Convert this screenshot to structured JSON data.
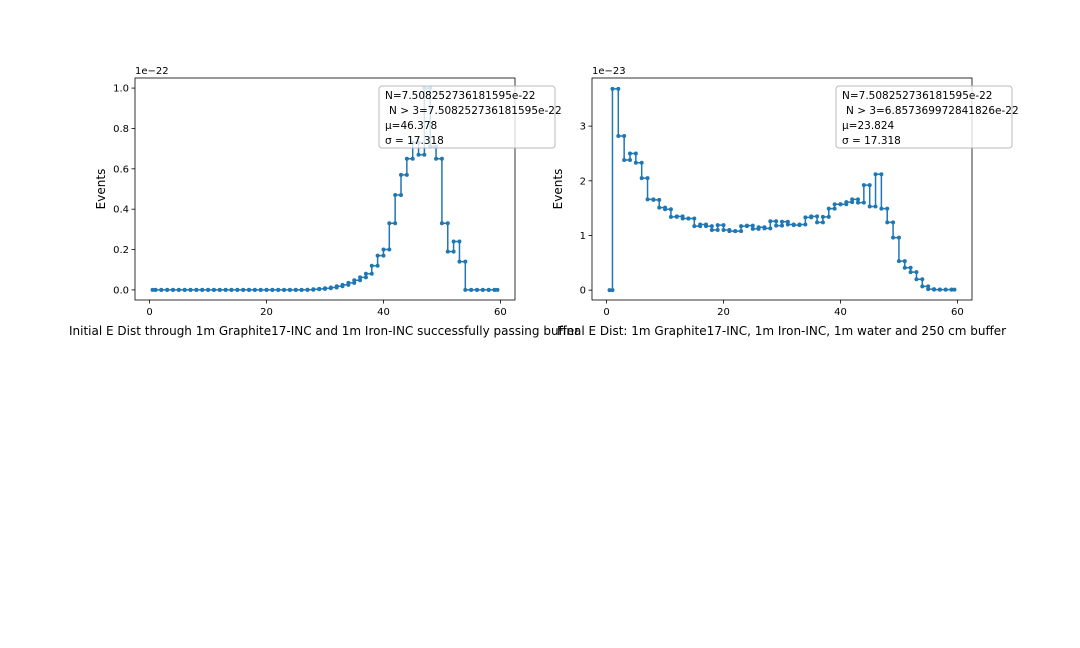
{
  "figure": {
    "background": "#ffffff"
  },
  "chart_data": [
    {
      "type": "line",
      "drawstyle": "steps-mid",
      "marker": "dot",
      "color": "#1f77b4",
      "title": "Initial E Dist through 1m Graphite17-INC and 1m Iron-INC successfully passing buffer",
      "xlabel": "",
      "ylabel": "Events",
      "offset_label": "1e−22",
      "xlim": [
        -2.5,
        62.5
      ],
      "ylim": [
        -0.05,
        1.05
      ],
      "xticks": [
        0,
        20,
        40,
        60
      ],
      "yticks": [
        0.0,
        0.2,
        0.4,
        0.6,
        0.8,
        1.0
      ],
      "ytick_labels": [
        "0.0",
        "0.2",
        "0.4",
        "0.6",
        "0.8",
        "1.0"
      ],
      "grid": false,
      "legend_position": "top-right",
      "legend": [
        "N=7.508252736181595e-22",
        "N > 3=7.508252736181595e-22",
        "μ=46.378",
        "σ = 17.318"
      ],
      "x": [
        0.5,
        1.5,
        2.5,
        3.5,
        4.5,
        5.5,
        6.5,
        7.5,
        8.5,
        9.5,
        10.5,
        11.5,
        12.5,
        13.5,
        14.5,
        15.5,
        16.5,
        17.5,
        18.5,
        19.5,
        20.5,
        21.5,
        22.5,
        23.5,
        24.5,
        25.5,
        26.5,
        27.5,
        28.5,
        29.5,
        30.5,
        31.5,
        32.5,
        33.5,
        34.5,
        35.5,
        36.5,
        37.5,
        38.5,
        39.5,
        40.5,
        41.5,
        42.5,
        43.5,
        44.5,
        45.5,
        46.5,
        47.5,
        48.5,
        49.5,
        50.5,
        51.5,
        52.5,
        53.5,
        54.5,
        55.5,
        56.5,
        57.5,
        58.5,
        59.5
      ],
      "y": [
        0,
        0,
        0,
        0,
        0,
        0,
        0,
        0,
        0,
        0,
        0,
        0,
        0,
        0,
        0,
        0,
        0,
        0,
        0,
        0,
        0,
        0,
        0,
        0,
        0,
        0,
        0,
        0.001,
        0.003,
        0.005,
        0.008,
        0.012,
        0.018,
        0.025,
        0.035,
        0.048,
        0.062,
        0.08,
        0.12,
        0.17,
        0.2,
        0.33,
        0.47,
        0.57,
        0.65,
        0.73,
        0.67,
        1.0,
        0.71,
        0.65,
        0.33,
        0.19,
        0.24,
        0.14,
        0,
        0,
        0,
        0,
        0,
        0
      ]
    },
    {
      "type": "line",
      "drawstyle": "steps-mid",
      "marker": "dot",
      "color": "#1f77b4",
      "title": "Final E Dist: 1m Graphite17-INC, 1m Iron-INC, 1m water and 250 cm buffer",
      "xlabel": "",
      "ylabel": "Events",
      "offset_label": "1e−23",
      "xlim": [
        -2.5,
        62.5
      ],
      "ylim": [
        -0.18,
        3.88
      ],
      "xticks": [
        0,
        20,
        40,
        60
      ],
      "yticks": [
        0,
        1,
        2,
        3
      ],
      "ytick_labels": [
        "0",
        "1",
        "2",
        "3"
      ],
      "grid": false,
      "legend_position": "top-right",
      "legend": [
        "N=7.508252736181595e-22",
        "N > 3=6.857369972841826e-22",
        "μ=23.824",
        "σ = 17.318"
      ],
      "x": [
        0.5,
        1.5,
        2.5,
        3.5,
        4.5,
        5.5,
        6.5,
        7.5,
        8.5,
        9.5,
        10.5,
        11.5,
        12.5,
        13.5,
        14.5,
        15.5,
        16.5,
        17.5,
        18.5,
        19.5,
        20.5,
        21.5,
        22.5,
        23.5,
        24.5,
        25.5,
        26.5,
        27.5,
        28.5,
        29.5,
        30.5,
        31.5,
        32.5,
        33.5,
        34.5,
        35.5,
        36.5,
        37.5,
        38.5,
        39.5,
        40.5,
        41.5,
        42.5,
        43.5,
        44.5,
        45.5,
        46.5,
        47.5,
        48.5,
        49.5,
        50.5,
        51.5,
        52.5,
        53.5,
        54.5,
        55.5,
        56.5,
        57.5,
        58.5,
        59.5
      ],
      "y": [
        0,
        3.68,
        2.82,
        2.38,
        2.5,
        2.33,
        2.05,
        1.66,
        1.65,
        1.51,
        1.48,
        1.34,
        1.35,
        1.31,
        1.31,
        1.17,
        1.2,
        1.17,
        1.1,
        1.19,
        1.1,
        1.08,
        1.08,
        1.17,
        1.18,
        1.12,
        1.15,
        1.13,
        1.26,
        1.18,
        1.25,
        1.2,
        1.19,
        1.2,
        1.33,
        1.35,
        1.24,
        1.34,
        1.49,
        1.57,
        1.57,
        1.61,
        1.66,
        1.6,
        1.92,
        1.53,
        2.12,
        1.49,
        1.24,
        0.96,
        0.53,
        0.41,
        0.33,
        0.2,
        0.07,
        0.02,
        0.01,
        0.01,
        0.01,
        0.01
      ]
    }
  ]
}
